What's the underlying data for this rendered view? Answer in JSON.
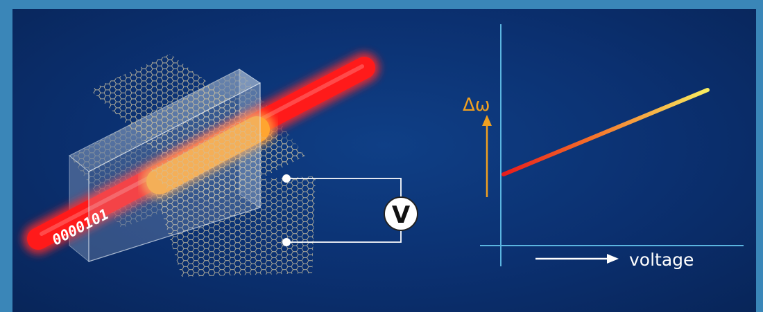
{
  "beam_bits": "0000101",
  "meter_symbol": "V",
  "graph": {
    "y_axis_label": "Δω",
    "x_axis_label": "voltage"
  },
  "colors": {
    "background": "#0b3070",
    "frame": "#3a86b8",
    "axis": "#5bb5e0",
    "beam": "#ff1a1a",
    "active_region": "#ffa530",
    "arrow_y": "#f0a020",
    "wire": "#ffffff",
    "line_start": "#e81c1c",
    "line_end": "#f8ee60"
  }
}
